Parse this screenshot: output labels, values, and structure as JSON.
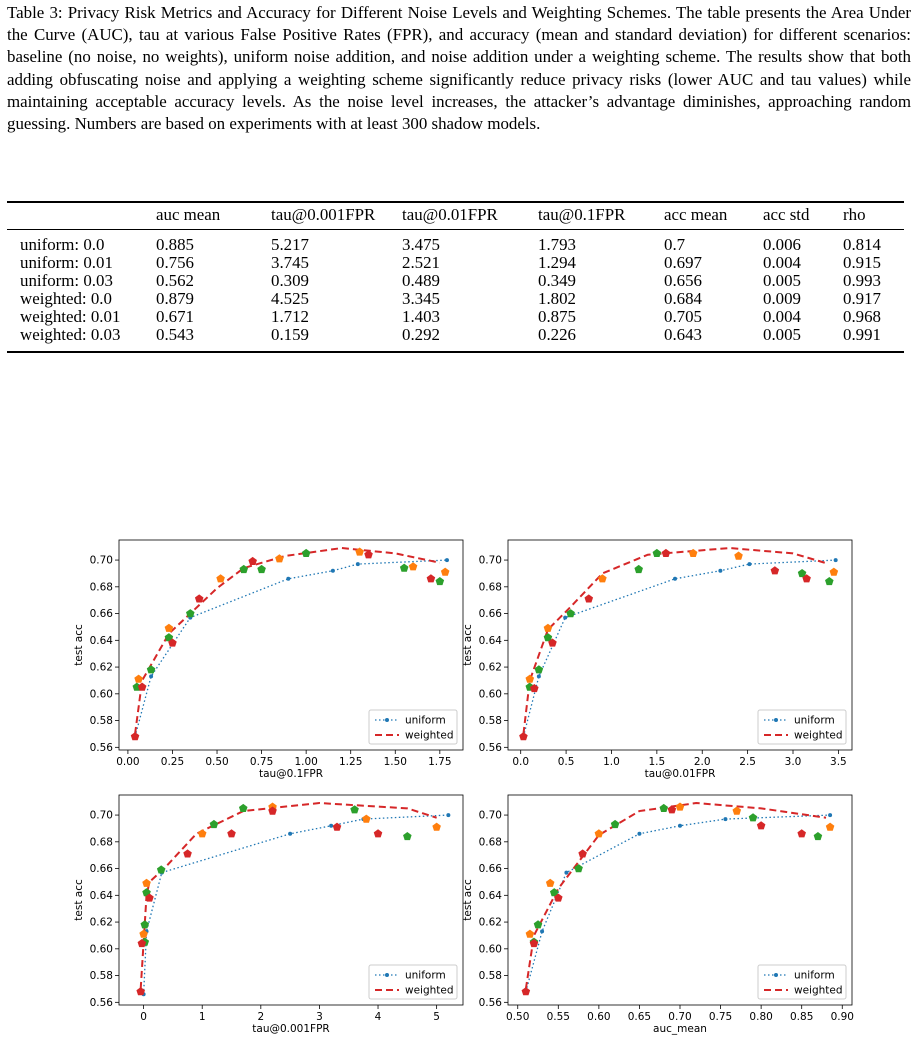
{
  "caption": "Table 3: Privacy Risk Metrics and Accuracy for Different Noise Levels and Weighting Schemes. The table presents the Area Under the Curve (AUC), tau at various False Positive Rates (FPR), and accuracy (mean and standard deviation) for different scenarios: baseline (no noise, no weights), uniform noise addition, and noise addition under a weighting scheme. The results show that both adding obfuscating noise and applying a weighting scheme significantly reduce privacy risks (lower AUC and tau values) while maintaining acceptable accuracy levels. As the noise level increases, the attacker’s advantage diminishes, approaching random guessing. Numbers are based on experiments with at least 300 shadow models.",
  "table": {
    "header": [
      "auc mean",
      "tau@0.001FPR",
      "tau@0.01FPR",
      "tau@0.1FPR",
      "acc mean",
      "acc std",
      "rho"
    ],
    "rows": [
      [
        "uniform: 0.0",
        "0.885",
        "5.217",
        "3.475",
        "1.793",
        "0.7",
        "0.006",
        "0.814"
      ],
      [
        "uniform: 0.01",
        "0.756",
        "3.745",
        "2.521",
        "1.294",
        "0.697",
        "0.004",
        "0.915"
      ],
      [
        "uniform: 0.03",
        "0.562",
        "0.309",
        "0.489",
        "0.349",
        "0.656",
        "0.005",
        "0.993"
      ],
      [
        "weighted: 0.0",
        "0.879",
        "4.525",
        "3.345",
        "1.802",
        "0.684",
        "0.009",
        "0.917"
      ],
      [
        "weighted: 0.01",
        "0.671",
        "1.712",
        "1.403",
        "0.875",
        "0.705",
        "0.004",
        "0.968"
      ],
      [
        "weighted: 0.03",
        "0.543",
        "0.159",
        "0.292",
        "0.226",
        "0.643",
        "0.005",
        "0.991"
      ]
    ]
  },
  "chart_data": [
    {
      "type": "line",
      "xlabel": "tau@0.1FPR",
      "ylabel": "test acc",
      "legend": "lower right",
      "xlim": [
        -0.05,
        1.88
      ],
      "ylim": [
        0.558,
        0.715
      ],
      "xticks": [
        {
          "value": 0,
          "label": "0.00"
        },
        0.25,
        {
          "value": 0.5,
          "label": "0.50"
        },
        0.75,
        {
          "value": 1,
          "label": "1.00"
        },
        1.25,
        {
          "value": 1.5,
          "label": "1.50"
        },
        1.75
      ],
      "yticks": [
        0.56,
        0.58,
        {
          "value": 0.6,
          "label": "0.60"
        },
        0.62,
        0.64,
        0.66,
        0.68,
        {
          "value": 0.7,
          "label": "0.70"
        }
      ],
      "series": [
        {
          "name": "uniform",
          "color": "#1f77b4",
          "style": "dotted",
          "x": [
            0.04,
            0.13,
            0.35,
            0.9,
            1.15,
            1.29,
            1.79
          ],
          "values": [
            0.568,
            0.613,
            0.657,
            0.686,
            0.692,
            0.697,
            0.7
          ]
        },
        {
          "name": "weighted",
          "color": "#d62728",
          "style": "dashed",
          "x": [
            0.04,
            0.08,
            0.23,
            0.35,
            0.5,
            0.65,
            0.88,
            1.2,
            1.5,
            1.75
          ],
          "values": [
            0.57,
            0.61,
            0.645,
            0.66,
            0.679,
            0.694,
            0.703,
            0.709,
            0.705,
            0.698
          ]
        }
      ],
      "points": [
        {
          "color": "#2ca02c",
          "x": [
            0.05,
            0.13,
            0.23,
            0.35,
            0.65,
            0.75,
            1.0,
            1.55,
            1.75
          ],
          "values": [
            0.605,
            0.618,
            0.642,
            0.66,
            0.693,
            0.693,
            0.705,
            0.694,
            0.684
          ]
        },
        {
          "color": "#ff7f0e",
          "x": [
            0.06,
            0.23,
            0.52,
            0.85,
            1.3,
            1.6,
            1.78
          ],
          "values": [
            0.611,
            0.649,
            0.686,
            0.701,
            0.706,
            0.695,
            0.691
          ]
        },
        {
          "color": "#d62728",
          "x": [
            0.04,
            0.08,
            0.25,
            0.4,
            0.7,
            1.35,
            1.7
          ],
          "values": [
            0.568,
            0.605,
            0.638,
            0.671,
            0.699,
            0.704,
            0.686
          ]
        }
      ]
    },
    {
      "type": "line",
      "xlabel": "tau@0.01FPR",
      "ylabel": "test acc",
      "legend": "lower right",
      "xlim": [
        -0.14,
        3.65
      ],
      "ylim": [
        0.558,
        0.715
      ],
      "xticks": [
        {
          "value": 0,
          "label": "0.0"
        },
        0.5,
        {
          "value": 1,
          "label": "1.0"
        },
        1.5,
        {
          "value": 2,
          "label": "2.0"
        },
        2.5,
        {
          "value": 3,
          "label": "3.0"
        },
        3.5
      ],
      "yticks": [
        0.56,
        0.58,
        {
          "value": 0.6,
          "label": "0.60"
        },
        0.62,
        0.64,
        0.66,
        0.68,
        {
          "value": 0.7,
          "label": "0.70"
        }
      ],
      "series": [
        {
          "name": "uniform",
          "color": "#1f77b4",
          "style": "dotted",
          "x": [
            0.03,
            0.2,
            0.49,
            1.7,
            2.2,
            2.52,
            3.47
          ],
          "values": [
            0.568,
            0.613,
            0.657,
            0.686,
            0.692,
            0.697,
            0.7
          ]
        },
        {
          "name": "weighted",
          "color": "#d62728",
          "style": "dashed",
          "x": [
            0.03,
            0.1,
            0.3,
            0.55,
            0.9,
            1.4,
            2.3,
            3.0,
            3.35
          ],
          "values": [
            0.57,
            0.61,
            0.648,
            0.665,
            0.69,
            0.704,
            0.709,
            0.705,
            0.698
          ]
        }
      ],
      "points": [
        {
          "color": "#2ca02c",
          "x": [
            0.1,
            0.2,
            0.3,
            0.55,
            1.3,
            1.5,
            3.1,
            3.4
          ],
          "values": [
            0.605,
            0.618,
            0.642,
            0.66,
            0.693,
            0.705,
            0.69,
            0.684
          ]
        },
        {
          "color": "#ff7f0e",
          "x": [
            0.1,
            0.3,
            0.9,
            1.9,
            2.4,
            3.45
          ],
          "values": [
            0.611,
            0.649,
            0.686,
            0.705,
            0.703,
            0.691
          ]
        },
        {
          "color": "#d62728",
          "x": [
            0.03,
            0.15,
            0.35,
            0.75,
            1.6,
            2.8,
            3.15
          ],
          "values": [
            0.568,
            0.604,
            0.638,
            0.671,
            0.705,
            0.692,
            0.686
          ]
        }
      ]
    },
    {
      "type": "line",
      "xlabel": "tau@0.001FPR",
      "ylabel": "test acc",
      "legend": "lower right",
      "xlim": [
        -0.42,
        5.45
      ],
      "ylim": [
        0.558,
        0.715
      ],
      "xticks": [
        0,
        1,
        2,
        3,
        4,
        5
      ],
      "yticks": [
        0.56,
        0.58,
        {
          "value": 0.6,
          "label": "0.60"
        },
        0.62,
        0.64,
        0.66,
        0.68,
        {
          "value": 0.7,
          "label": "0.70"
        }
      ],
      "series": [
        {
          "name": "uniform",
          "color": "#1f77b4",
          "style": "dotted",
          "x": [
            0.0,
            0.05,
            0.31,
            2.5,
            3.2,
            3.75,
            5.2
          ],
          "values": [
            0.566,
            0.613,
            0.657,
            0.686,
            0.692,
            0.697,
            0.7
          ]
        },
        {
          "name": "weighted",
          "color": "#d62728",
          "style": "dashed",
          "x": [
            -0.05,
            0.05,
            0.1,
            0.35,
            0.9,
            1.7,
            3.0,
            4.5,
            5.0
          ],
          "values": [
            0.57,
            0.64,
            0.65,
            0.66,
            0.686,
            0.703,
            0.709,
            0.705,
            0.698
          ]
        }
      ],
      "points": [
        {
          "color": "#2ca02c",
          "x": [
            0.02,
            0.02,
            0.05,
            0.3,
            1.2,
            1.7,
            3.6,
            4.5
          ],
          "values": [
            0.605,
            0.618,
            0.642,
            0.659,
            0.693,
            0.705,
            0.704,
            0.684
          ]
        },
        {
          "color": "#ff7f0e",
          "x": [
            0.0,
            0.05,
            1.0,
            2.2,
            3.8,
            5.0
          ],
          "values": [
            0.611,
            0.649,
            0.686,
            0.706,
            0.697,
            0.691
          ]
        },
        {
          "color": "#d62728",
          "x": [
            -0.05,
            -0.03,
            0.1,
            0.75,
            1.5,
            2.2,
            3.3,
            4.0
          ],
          "values": [
            0.568,
            0.604,
            0.638,
            0.671,
            0.686,
            0.703,
            0.691,
            0.686
          ]
        }
      ]
    },
    {
      "type": "line",
      "xlabel": "auc_mean",
      "ylabel": "test acc",
      "legend": "lower right",
      "xlim": [
        0.488,
        0.912
      ],
      "ylim": [
        0.558,
        0.715
      ],
      "xticks": [
        {
          "value": 0.5,
          "label": "0.50"
        },
        0.55,
        {
          "value": 0.6,
          "label": "0.60"
        },
        0.65,
        {
          "value": 0.7,
          "label": "0.70"
        },
        0.75,
        {
          "value": 0.8,
          "label": "0.80"
        },
        0.85,
        {
          "value": 0.9,
          "label": "0.90"
        }
      ],
      "yticks": [
        0.56,
        0.58,
        {
          "value": 0.6,
          "label": "0.60"
        },
        0.62,
        0.64,
        0.66,
        0.68,
        {
          "value": 0.7,
          "label": "0.70"
        }
      ],
      "series": [
        {
          "name": "uniform",
          "color": "#1f77b4",
          "style": "dotted",
          "x": [
            0.51,
            0.53,
            0.56,
            0.65,
            0.7,
            0.756,
            0.885
          ],
          "values": [
            0.568,
            0.613,
            0.657,
            0.686,
            0.692,
            0.697,
            0.7
          ]
        },
        {
          "name": "weighted",
          "color": "#d62728",
          "style": "dashed",
          "x": [
            0.51,
            0.52,
            0.55,
            0.6,
            0.65,
            0.72,
            0.8,
            0.88
          ],
          "values": [
            0.57,
            0.61,
            0.645,
            0.685,
            0.703,
            0.709,
            0.705,
            0.698
          ]
        }
      ],
      "points": [
        {
          "color": "#2ca02c",
          "x": [
            0.52,
            0.525,
            0.545,
            0.575,
            0.62,
            0.68,
            0.79,
            0.87
          ],
          "values": [
            0.605,
            0.618,
            0.642,
            0.66,
            0.693,
            0.705,
            0.698,
            0.684
          ]
        },
        {
          "color": "#ff7f0e",
          "x": [
            0.515,
            0.54,
            0.6,
            0.7,
            0.77,
            0.885
          ],
          "values": [
            0.611,
            0.649,
            0.686,
            0.706,
            0.703,
            0.691
          ]
        },
        {
          "color": "#d62728",
          "x": [
            0.51,
            0.52,
            0.55,
            0.58,
            0.69,
            0.8,
            0.85
          ],
          "values": [
            0.568,
            0.604,
            0.638,
            0.671,
            0.704,
            0.692,
            0.686
          ]
        }
      ]
    }
  ]
}
